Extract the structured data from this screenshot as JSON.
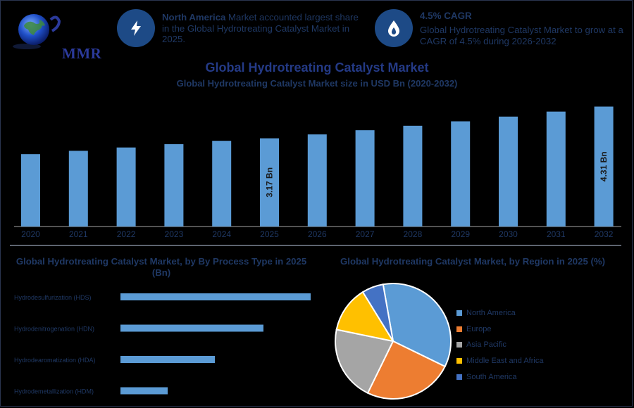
{
  "header": {
    "logo_text": "MMR",
    "kpi1": {
      "icon": "lightning-icon",
      "bold": "North America",
      "text": " Market accounted largest share in the Global Hydrotreating Catalyst Market in 2025."
    },
    "kpi2": {
      "icon": "flame-drop-icon",
      "head": "4.5% CAGR",
      "text": "Global Hydrotreating Catalyst Market to grow at a CAGR of 4.5% during 2026-2032"
    }
  },
  "colors": {
    "bar": "#5b9bd5",
    "axis": "#a6a6a6",
    "dark_text": "#1f3864",
    "icon_bg": "#1d4a86"
  },
  "chart_data": [
    {
      "type": "bar",
      "title": "Global Hydrotreating Catalyst Market",
      "subtitle": "Global Hydrotreating Catalyst Market size in USD Bn (2020-2032)",
      "categories": [
        "2020",
        "2021",
        "2022",
        "2023",
        "2024",
        "2025",
        "2026",
        "2027",
        "2028",
        "2029",
        "2030",
        "2031",
        "2032"
      ],
      "values": [
        2.6,
        2.72,
        2.84,
        2.96,
        3.08,
        3.17,
        3.31,
        3.46,
        3.62,
        3.78,
        3.95,
        4.13,
        4.31
      ],
      "data_labels": {
        "2025": "3.17 Bn",
        "2032": "4.31 Bn"
      },
      "ylim": [
        0,
        4.5
      ]
    },
    {
      "type": "bar",
      "orientation": "horizontal",
      "title": "Global Hydrotreating Catalyst Market, by By Process Type in 2025 (Bn)",
      "categories": [
        "Hydrodesulfurization (HDS)",
        "Hydrodenitrogenation (HDN)",
        "Hydrodearomatization (HDA)",
        "Hydrodemetallization (HDM)"
      ],
      "values": [
        1.45,
        1.09,
        0.72,
        0.36
      ],
      "xlim": [
        0,
        1.45
      ]
    },
    {
      "type": "pie",
      "title": "Global Hydrotreating Catalyst Market, by Region in 2025 (%)",
      "categories": [
        "North America",
        "Europe",
        "Asia Pacific",
        "Middle East and Africa",
        "South America"
      ],
      "values": [
        35,
        25,
        21,
        13,
        6
      ],
      "colors": [
        "#5b9bd5",
        "#ed7d31",
        "#a5a5a5",
        "#ffc000",
        "#4472c4"
      ]
    }
  ]
}
